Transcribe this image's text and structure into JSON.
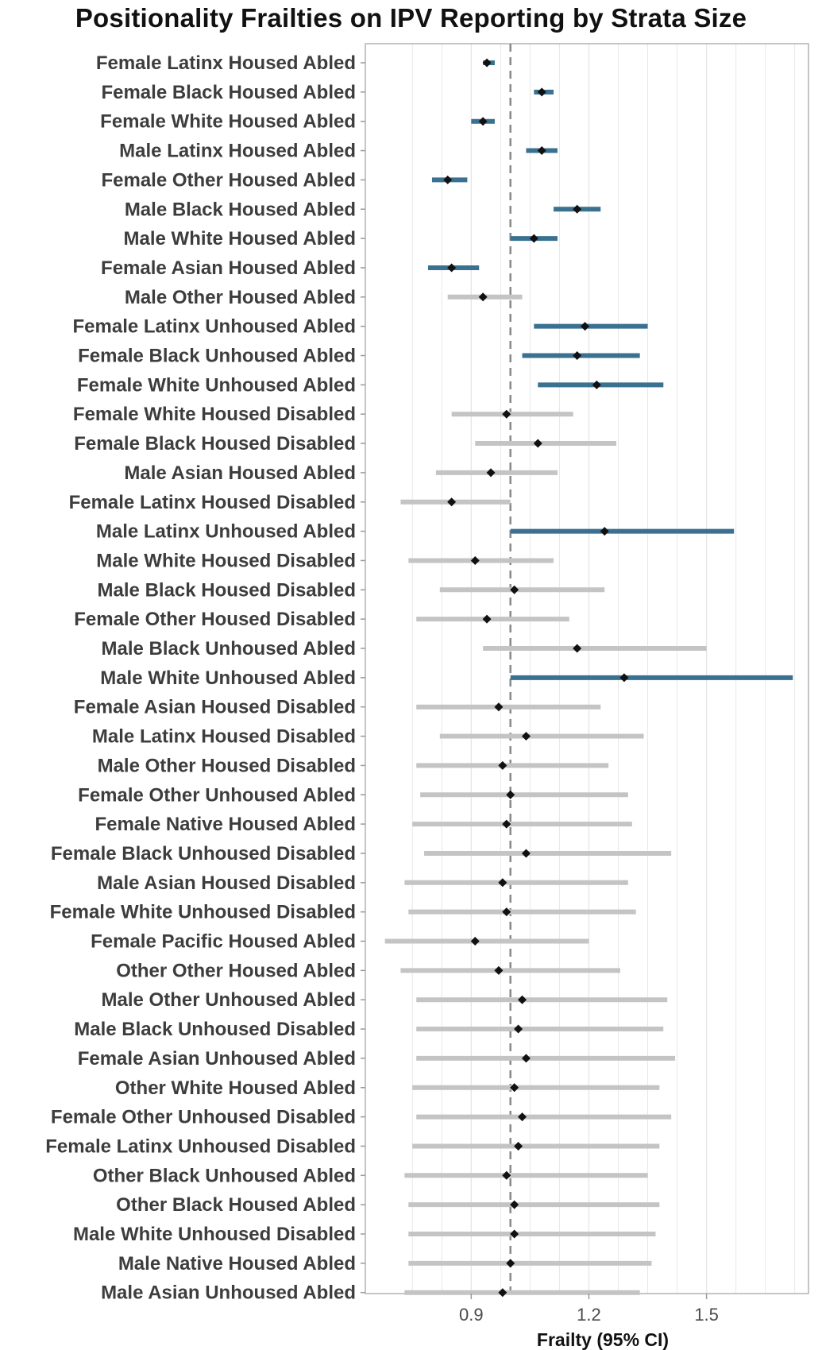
{
  "chart_data": {
    "type": "forest",
    "title": "Positionality Frailties on IPV Reporting by Strata Size",
    "xlabel": "Frailty (95% CI)",
    "ylabel": "",
    "xlim": [
      0.63,
      1.76
    ],
    "x_ticks": [
      0.9,
      1.2,
      1.5
    ],
    "x_tick_labels": [
      "0.9",
      "1.2",
      "1.5"
    ],
    "reference_line": 1.0,
    "grid": true,
    "colors": {
      "significant": "#3a7191",
      "not_significant": "#c4c4c4",
      "point": "#111111",
      "reference_line": "#8a8a8a",
      "panel_border": "#b3b3b3",
      "grid": "#e6e6e6"
    },
    "rows": [
      {
        "label": "Female Latinx Housed Abled",
        "estimate": 0.94,
        "lower": 0.93,
        "upper": 0.96,
        "significant": true
      },
      {
        "label": "Female Black Housed Abled",
        "estimate": 1.08,
        "lower": 1.06,
        "upper": 1.11,
        "significant": true
      },
      {
        "label": "Female White Housed Abled",
        "estimate": 0.93,
        "lower": 0.9,
        "upper": 0.96,
        "significant": true
      },
      {
        "label": "Male Latinx Housed Abled",
        "estimate": 1.08,
        "lower": 1.04,
        "upper": 1.12,
        "significant": true
      },
      {
        "label": "Female Other Housed Abled",
        "estimate": 0.84,
        "lower": 0.8,
        "upper": 0.89,
        "significant": true
      },
      {
        "label": "Male Black Housed Abled",
        "estimate": 1.17,
        "lower": 1.11,
        "upper": 1.23,
        "significant": true
      },
      {
        "label": "Male White Housed Abled",
        "estimate": 1.06,
        "lower": 1.0,
        "upper": 1.12,
        "significant": true
      },
      {
        "label": "Female Asian Housed Abled",
        "estimate": 0.85,
        "lower": 0.79,
        "upper": 0.92,
        "significant": true
      },
      {
        "label": "Male Other Housed Abled",
        "estimate": 0.93,
        "lower": 0.84,
        "upper": 1.03,
        "significant": false
      },
      {
        "label": "Female Latinx Unhoused Abled",
        "estimate": 1.19,
        "lower": 1.06,
        "upper": 1.35,
        "significant": true
      },
      {
        "label": "Female Black Unhoused Abled",
        "estimate": 1.17,
        "lower": 1.03,
        "upper": 1.33,
        "significant": true
      },
      {
        "label": "Female White Unhoused Abled",
        "estimate": 1.22,
        "lower": 1.07,
        "upper": 1.39,
        "significant": true
      },
      {
        "label": "Female White Housed Disabled",
        "estimate": 0.99,
        "lower": 0.85,
        "upper": 1.16,
        "significant": false
      },
      {
        "label": "Female Black Housed Disabled",
        "estimate": 1.07,
        "lower": 0.91,
        "upper": 1.27,
        "significant": false
      },
      {
        "label": "Male Asian Housed Abled",
        "estimate": 0.95,
        "lower": 0.81,
        "upper": 1.12,
        "significant": false
      },
      {
        "label": "Female Latinx Housed Disabled",
        "estimate": 0.85,
        "lower": 0.72,
        "upper": 1.0,
        "significant": false
      },
      {
        "label": "Male Latinx Unhoused Abled",
        "estimate": 1.24,
        "lower": 1.0,
        "upper": 1.57,
        "significant": true
      },
      {
        "label": "Male White Housed Disabled",
        "estimate": 0.91,
        "lower": 0.74,
        "upper": 1.11,
        "significant": false
      },
      {
        "label": "Male Black Housed Disabled",
        "estimate": 1.01,
        "lower": 0.82,
        "upper": 1.24,
        "significant": false
      },
      {
        "label": "Female Other Housed Disabled",
        "estimate": 0.94,
        "lower": 0.76,
        "upper": 1.15,
        "significant": false
      },
      {
        "label": "Male Black Unhoused Abled",
        "estimate": 1.17,
        "lower": 0.93,
        "upper": 1.5,
        "significant": false
      },
      {
        "label": "Male White Unhoused Abled",
        "estimate": 1.29,
        "lower": 1.0,
        "upper": 1.72,
        "significant": true
      },
      {
        "label": "Female Asian Housed Disabled",
        "estimate": 0.97,
        "lower": 0.76,
        "upper": 1.23,
        "significant": false
      },
      {
        "label": "Male Latinx Housed Disabled",
        "estimate": 1.04,
        "lower": 0.82,
        "upper": 1.34,
        "significant": false
      },
      {
        "label": "Male Other Housed Disabled",
        "estimate": 0.98,
        "lower": 0.76,
        "upper": 1.25,
        "significant": false
      },
      {
        "label": "Female Other Unhoused Abled",
        "estimate": 1.0,
        "lower": 0.77,
        "upper": 1.3,
        "significant": false
      },
      {
        "label": "Female Native Housed Abled",
        "estimate": 0.99,
        "lower": 0.75,
        "upper": 1.31,
        "significant": false
      },
      {
        "label": "Female Black Unhoused Disabled",
        "estimate": 1.04,
        "lower": 0.78,
        "upper": 1.41,
        "significant": false
      },
      {
        "label": "Male Asian Housed Disabled",
        "estimate": 0.98,
        "lower": 0.73,
        "upper": 1.3,
        "significant": false
      },
      {
        "label": "Female White Unhoused Disabled",
        "estimate": 0.99,
        "lower": 0.74,
        "upper": 1.32,
        "significant": false
      },
      {
        "label": "Female Pacific Housed Abled",
        "estimate": 0.91,
        "lower": 0.68,
        "upper": 1.2,
        "significant": false
      },
      {
        "label": "Other Other Housed Abled",
        "estimate": 0.97,
        "lower": 0.72,
        "upper": 1.28,
        "significant": false
      },
      {
        "label": "Male Other Unhoused Abled",
        "estimate": 1.03,
        "lower": 0.76,
        "upper": 1.4,
        "significant": false
      },
      {
        "label": "Male Black Unhoused Disabled",
        "estimate": 1.02,
        "lower": 0.76,
        "upper": 1.39,
        "significant": false
      },
      {
        "label": "Female Asian Unhoused Abled",
        "estimate": 1.04,
        "lower": 0.76,
        "upper": 1.42,
        "significant": false
      },
      {
        "label": "Other White Housed Abled",
        "estimate": 1.01,
        "lower": 0.75,
        "upper": 1.38,
        "significant": false
      },
      {
        "label": "Female Other Unhoused Disabled",
        "estimate": 1.03,
        "lower": 0.76,
        "upper": 1.41,
        "significant": false
      },
      {
        "label": "Female Latinx Unhoused Disabled",
        "estimate": 1.02,
        "lower": 0.75,
        "upper": 1.38,
        "significant": false
      },
      {
        "label": "Other Black Unhoused Abled",
        "estimate": 0.99,
        "lower": 0.73,
        "upper": 1.35,
        "significant": false
      },
      {
        "label": "Other Black Housed Abled",
        "estimate": 1.01,
        "lower": 0.74,
        "upper": 1.38,
        "significant": false
      },
      {
        "label": "Male White Unhoused Disabled",
        "estimate": 1.01,
        "lower": 0.74,
        "upper": 1.37,
        "significant": false
      },
      {
        "label": "Male Native Housed Abled",
        "estimate": 1.0,
        "lower": 0.74,
        "upper": 1.36,
        "significant": false
      },
      {
        "label": "Male Asian Unhoused Abled",
        "estimate": 0.98,
        "lower": 0.73,
        "upper": 1.33,
        "significant": false
      }
    ]
  }
}
